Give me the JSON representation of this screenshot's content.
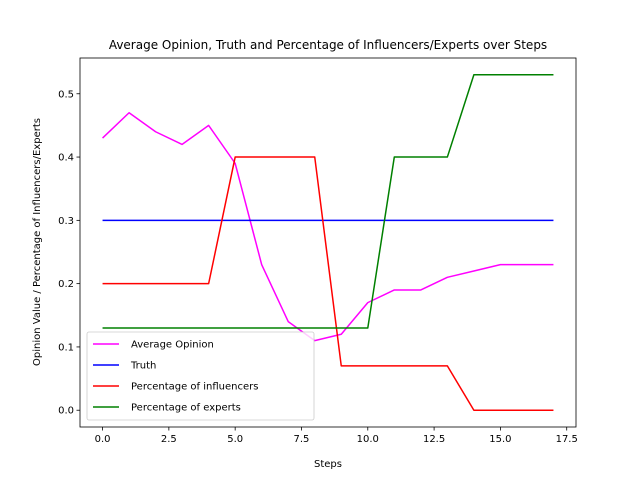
{
  "chart_data": {
    "type": "line",
    "title": "Average Opinion, Truth and Percentage of Influencers/Experts over Steps",
    "xlabel": "Steps",
    "ylabel": "Opinion Value / Percentage of Influencers/Experts",
    "xlim": [
      -0.85,
      17.85
    ],
    "ylim": [
      -0.0265,
      0.5565
    ],
    "xticks": [
      0.0,
      2.5,
      5.0,
      7.5,
      10.0,
      12.5,
      15.0,
      17.5
    ],
    "xtick_labels": [
      "0.0",
      "2.5",
      "5.0",
      "7.5",
      "10.0",
      "12.5",
      "15.0",
      "17.5"
    ],
    "yticks": [
      0.0,
      0.1,
      0.2,
      0.3,
      0.4,
      0.5
    ],
    "ytick_labels": [
      "0.0",
      "0.1",
      "0.2",
      "0.3",
      "0.4",
      "0.5"
    ],
    "grid": false,
    "legend_position": "lower-left",
    "x": [
      0,
      1,
      2,
      3,
      4,
      5,
      6,
      7,
      8,
      9,
      10,
      11,
      12,
      13,
      14,
      15,
      16,
      17
    ],
    "series": [
      {
        "name": "Average Opinion",
        "color": "#ff00ff",
        "values": [
          0.43,
          0.47,
          0.44,
          0.42,
          0.45,
          0.39,
          0.23,
          0.14,
          0.11,
          0.12,
          0.17,
          0.19,
          0.19,
          0.21,
          0.22,
          0.23,
          0.23,
          0.23
        ]
      },
      {
        "name": "Truth",
        "color": "#0000ff",
        "values": [
          0.3,
          0.3,
          0.3,
          0.3,
          0.3,
          0.3,
          0.3,
          0.3,
          0.3,
          0.3,
          0.3,
          0.3,
          0.3,
          0.3,
          0.3,
          0.3,
          0.3,
          0.3
        ]
      },
      {
        "name": "Percentage of influencers",
        "color": "#ff0000",
        "values": [
          0.2,
          0.2,
          0.2,
          0.2,
          0.2,
          0.4,
          0.4,
          0.4,
          0.4,
          0.07,
          0.07,
          0.07,
          0.07,
          0.07,
          0.0,
          0.0,
          0.0,
          0.0
        ]
      },
      {
        "name": "Percentage of experts",
        "color": "#008000",
        "values": [
          0.13,
          0.13,
          0.13,
          0.13,
          0.13,
          0.13,
          0.13,
          0.13,
          0.13,
          0.13,
          0.13,
          0.4,
          0.4,
          0.4,
          0.53,
          0.53,
          0.53,
          0.53
        ]
      }
    ]
  }
}
